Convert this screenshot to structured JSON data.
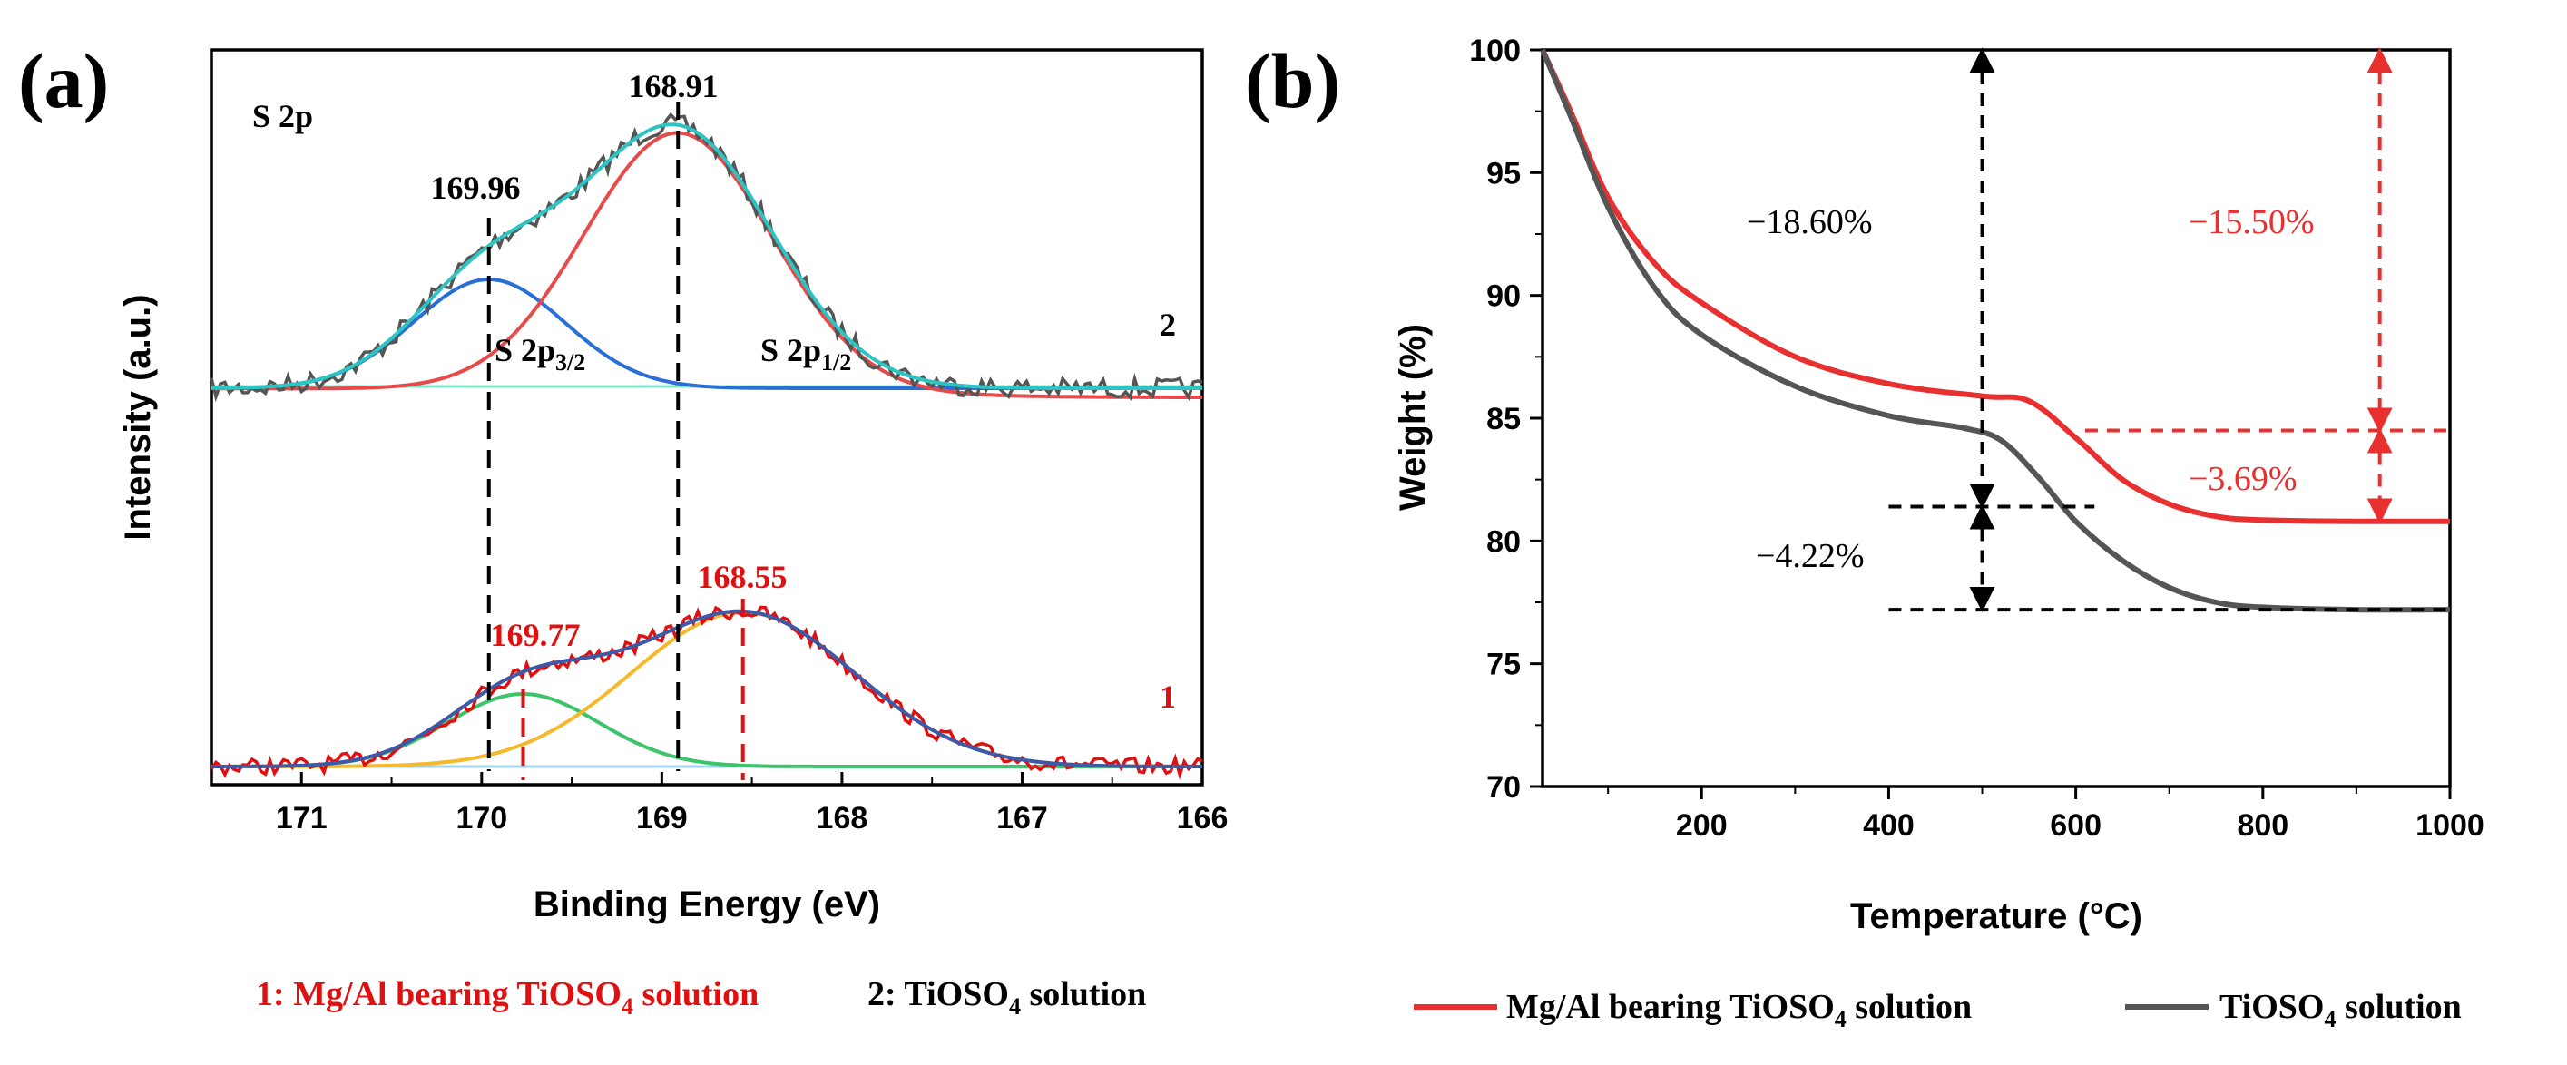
{
  "panel_a_label": "(a)",
  "panel_b_label": "(b)",
  "chart_data": [
    {
      "type": "line",
      "panel": "a",
      "title": "S 2p",
      "xlabel": "Binding Energy (eV)",
      "ylabel": "Intensity (a.u.)",
      "xlim": [
        171.5,
        166
      ],
      "xticks": [
        "171",
        "170",
        "169",
        "168",
        "167",
        "166"
      ],
      "x_reversed": true,
      "series": [
        {
          "name": "2: TiOSO4 solution",
          "label": "2",
          "fit_total_color": "#2ec4c4",
          "raw_color": "#555555",
          "peaks": [
            {
              "center": 169.96,
              "label": "169.96",
              "component": "S 2p3/2",
              "color": "#2a6fd6"
            },
            {
              "center": 168.91,
              "label": "168.91",
              "component": "S 2p1/2",
              "color": "#e84a4a"
            }
          ]
        },
        {
          "name": "1: Mg/Al bearing TiOSO4 solution",
          "label": "1",
          "fit_total_color": "#3d5aa8",
          "raw_color": "#e01010",
          "peaks": [
            {
              "center": 169.77,
              "label": "169.77",
              "color": "#3cc46a"
            },
            {
              "center": 168.55,
              "label": "168.55",
              "color": "#f5b92e"
            }
          ]
        }
      ],
      "component_labels": {
        "s2p32_main": "S 2p",
        "s2p32_sub": "3/2",
        "s2p12_main": "S 2p",
        "s2p12_sub": "1/2"
      },
      "legend": {
        "item1": "1: Mg/Al bearing TiOSO",
        "item1_sub": "4",
        "item1_tail": " solution",
        "item2": "2: TiOSO",
        "item2_sub": "4",
        "item2_tail": " solution"
      }
    },
    {
      "type": "line",
      "panel": "b",
      "xlabel": "Temperature (°C)",
      "ylabel": "Weight (%)",
      "xlim": [
        30,
        1000
      ],
      "ylim": [
        70,
        100
      ],
      "xticks": [
        "200",
        "400",
        "600",
        "800",
        "1000"
      ],
      "yticks": [
        "70",
        "75",
        "80",
        "85",
        "90",
        "95",
        "100"
      ],
      "series": [
        {
          "name": "Mg/Al bearing TiOSO4 solution",
          "color": "#e83030",
          "x": [
            30,
            60,
            100,
            150,
            200,
            300,
            400,
            500,
            550,
            600,
            650,
            700,
            750,
            800,
            900,
            1000
          ],
          "y": [
            100,
            97.5,
            94.0,
            91.3,
            89.7,
            87.5,
            86.4,
            85.9,
            85.7,
            84.2,
            82.5,
            81.5,
            81.0,
            80.85,
            80.8,
            80.8
          ]
        },
        {
          "name": "TiOSO4 solution",
          "color": "#555555",
          "x": [
            30,
            60,
            100,
            150,
            200,
            300,
            400,
            480,
            520,
            560,
            600,
            650,
            700,
            750,
            800,
            900,
            1000
          ],
          "y": [
            100,
            97.3,
            93.6,
            90.3,
            88.4,
            86.3,
            85.1,
            84.6,
            84.1,
            82.6,
            80.8,
            79.2,
            78.1,
            77.5,
            77.3,
            77.2,
            77.2
          ]
        }
      ],
      "annotations": {
        "a1": "−18.60%",
        "a2": "−4.22%",
        "a3": "−15.50%",
        "a4": "−3.69%"
      },
      "legend": {
        "item1": "Mg/Al bearing TiOSO",
        "item1_sub": "4",
        "item1_tail": " solution",
        "item2": "TiOSO",
        "item2_sub": "4",
        "item2_tail": " solution"
      }
    }
  ]
}
